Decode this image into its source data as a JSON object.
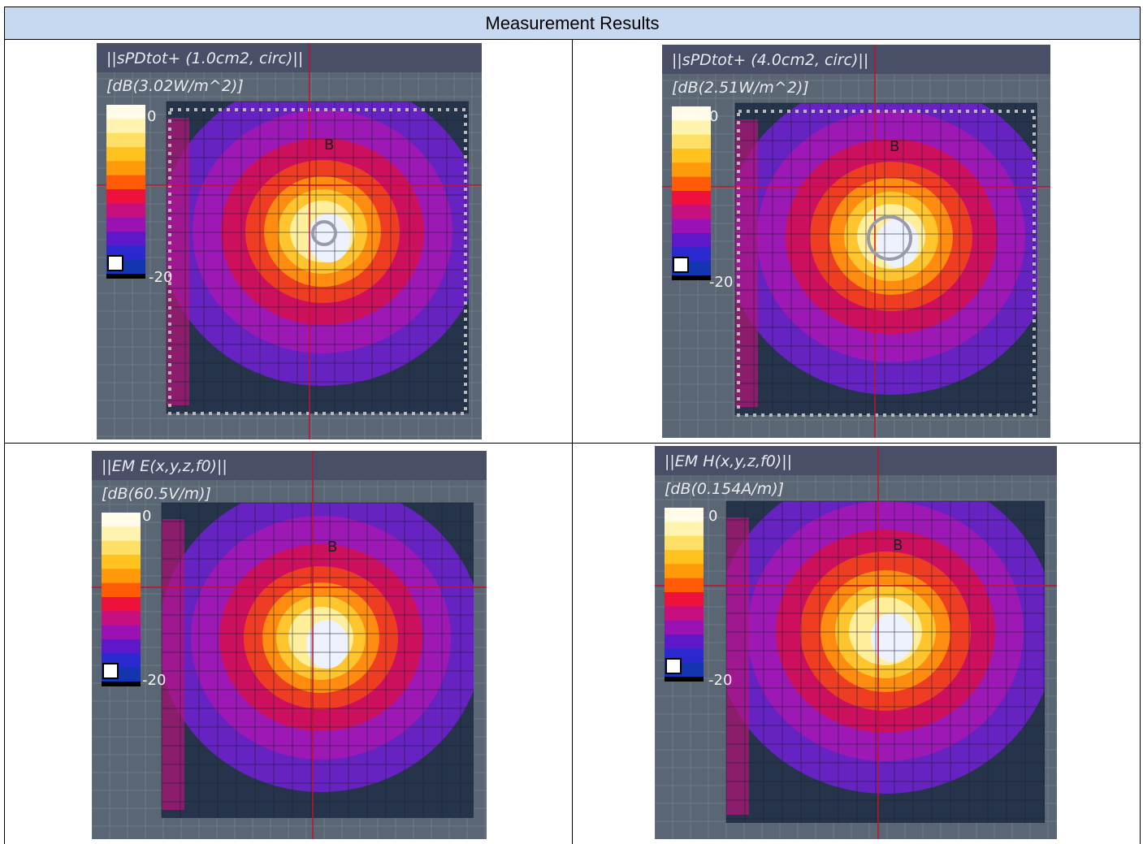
{
  "header": {
    "title": "Measurement Results"
  },
  "plots": [
    {
      "title": "||sPDtot+ (1.0cm2, circ)||",
      "unit": "[dB(3.02W/m^2)]",
      "cbar_max": "0",
      "cbar_min": "-20",
      "marker": "B"
    },
    {
      "title": "||sPDtot+ (4.0cm2, circ)||",
      "unit": "[dB(2.51W/m^2)]",
      "cbar_max": "0",
      "cbar_min": "-20",
      "marker": "B"
    },
    {
      "title": "||EM E(x,y,z,f0)||",
      "unit": "[dB(60.5V/m)]",
      "cbar_max": "0",
      "cbar_min": "-20",
      "marker": "B"
    },
    {
      "title": "||EM H(x,y,z,f0)||",
      "unit": "[dB(0.154A/m)]",
      "cbar_max": "0",
      "cbar_min": "-20",
      "marker": "B"
    }
  ],
  "colorscale": [
    "#fffbe8",
    "#fff3b0",
    "#ffe066",
    "#ffc21f",
    "#ff9a0a",
    "#ff5a05",
    "#f0103c",
    "#c80f80",
    "#9a12b4",
    "#5e17c9",
    "#2b28d0",
    "#1336b0"
  ],
  "colors": {
    "header_bg": "#c6d9f1",
    "plot_bg": "#5a6674",
    "plot_title_bar": "#4a4f68",
    "field_bg": "#25344a"
  }
}
